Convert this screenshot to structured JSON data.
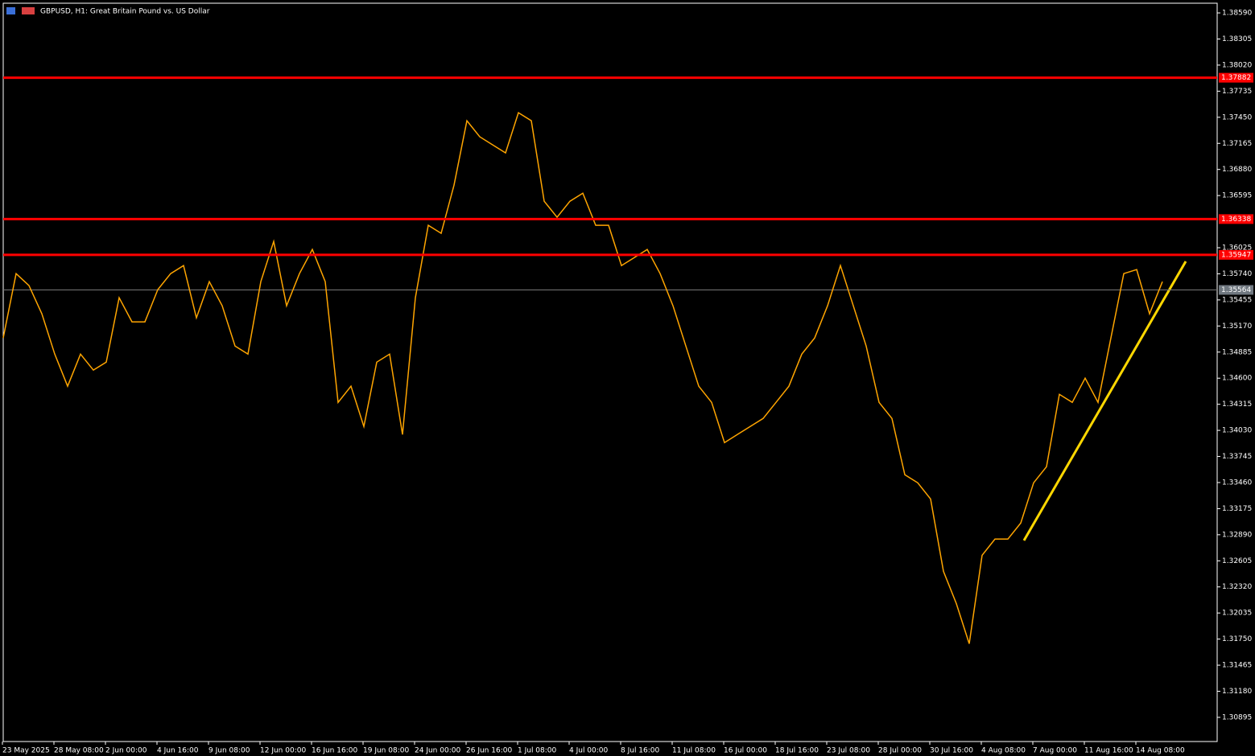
{
  "chart_data": {
    "type": "line",
    "title": "GBPUSD, H1:  Great Britain Pound vs. US Dollar",
    "xtick_labels": [
      "23 May 2025",
      "28 May 08:00",
      "2 Jun 00:00",
      "4 Jun 16:00",
      "9 Jun 08:00",
      "12 Jun 00:00",
      "16 Jun 16:00",
      "19 Jun 08:00",
      "24 Jun 00:00",
      "26 Jun 16:00",
      "1 Jul 08:00",
      "4 Jul 00:00",
      "8 Jul 16:00",
      "11 Jul 08:00",
      "16 Jul 00:00",
      "18 Jul 16:00",
      "23 Jul 08:00",
      "28 Jul 00:00",
      "30 Jul 16:00",
      "4 Aug 08:00",
      "7 Aug 00:00",
      "11 Aug 16:00",
      "14 Aug 08:00"
    ],
    "series": [
      {
        "name": "GBPUSD",
        "color": "#ffa500",
        "values": [
          1.35039,
          1.35742,
          1.35611,
          1.35303,
          1.34863,
          1.34512,
          1.34863,
          1.34688,
          1.34775,
          1.35479,
          1.35215,
          1.35215,
          1.35567,
          1.35742,
          1.3583,
          1.35259,
          1.35654,
          1.35391,
          1.34951,
          1.34863,
          1.35654,
          1.36094,
          1.35391,
          1.35742,
          1.36006,
          1.35654,
          1.34336,
          1.34512,
          1.34072,
          1.34775,
          1.34863,
          1.33984,
          1.35479,
          1.3627,
          1.36182,
          1.36709,
          1.37412,
          1.37237,
          1.37149,
          1.37061,
          1.375,
          1.37412,
          1.36533,
          1.36358,
          1.36533,
          1.36621,
          1.3627,
          1.3627,
          1.3583,
          1.35918,
          1.36006,
          1.35742,
          1.35391,
          1.34951,
          1.34512,
          1.34336,
          1.33896,
          1.33984,
          1.34072,
          1.3416,
          1.34336,
          1.34512,
          1.34863,
          1.35039,
          1.35391,
          1.3583,
          1.35391,
          1.34951,
          1.34336,
          1.3416,
          1.33545,
          1.33457,
          1.33281,
          1.3249,
          1.32138,
          1.31699,
          1.32666,
          1.32842,
          1.32842,
          1.33017,
          1.33457,
          1.33633,
          1.34424,
          1.34336,
          1.346,
          1.34336,
          1.35039,
          1.35742,
          1.35786,
          1.35303,
          1.35654
        ]
      }
    ],
    "levels": [
      1.37882,
      1.36338,
      1.35947
    ],
    "level_color": "#ff0000",
    "current_price": 1.35564,
    "ylim": [
      1.30631,
      1.38731
    ],
    "yticks": [
      {
        "value": 1.3859,
        "label": "1.38590"
      },
      1.38305,
      {
        "value": 1.3802,
        "label": "1.38020"
      },
      1.37735,
      {
        "value": 1.3745,
        "label": "1.37450"
      },
      1.37165,
      {
        "value": 1.3688,
        "label": "1.36880"
      },
      1.36595,
      1.36025,
      {
        "value": 1.3574,
        "label": "1.35740"
      },
      1.35455,
      {
        "value": 1.3517,
        "label": "1.35170"
      },
      1.34885,
      {
        "value": 1.346,
        "label": "1.34600"
      },
      1.34315,
      {
        "value": 1.3403,
        "label": "1.34030"
      },
      1.33745,
      {
        "value": 1.3346,
        "label": "1.33460"
      },
      1.33175,
      {
        "value": 1.3289,
        "label": "1.32890"
      },
      1.32605,
      {
        "value": 1.3232,
        "label": "1.32320"
      },
      1.32035,
      {
        "value": 1.3175,
        "label": "1.31750"
      },
      1.31465,
      {
        "value": 1.3118,
        "label": "1.31180"
      },
      1.30895
    ]
  }
}
